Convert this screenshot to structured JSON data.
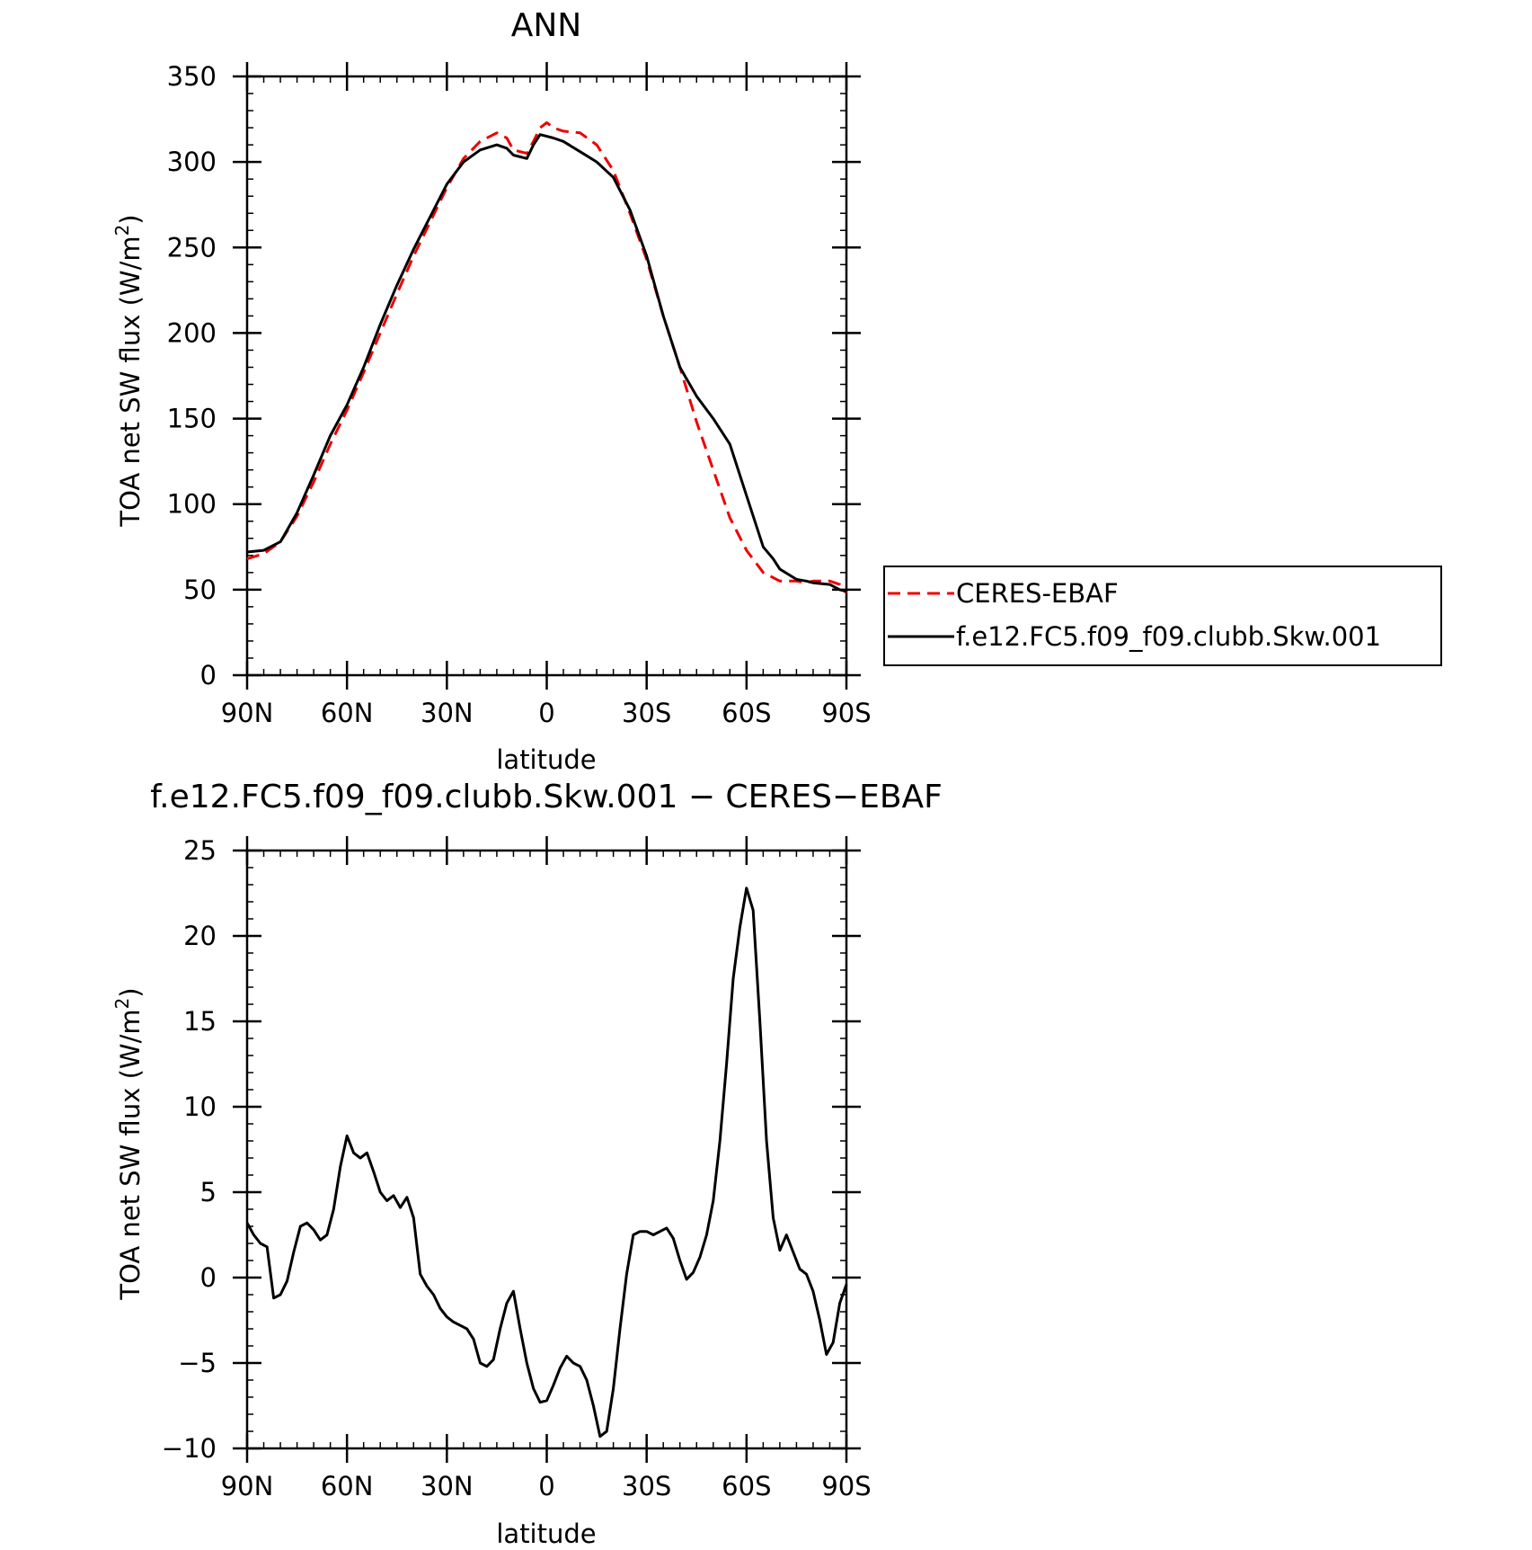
{
  "colors": {
    "obs": "#ee0000",
    "model": "#000000",
    "diff": "#000000"
  },
  "chart_data": [
    {
      "type": "line",
      "title": "ANN",
      "xlabel": "latitude",
      "ylabel": "TOA net SW flux (W/m²)",
      "x_direction": "90N to 90S",
      "x_tick_values": [
        90,
        60,
        30,
        0,
        -30,
        -60,
        -90
      ],
      "x_tick_labels": [
        "90N",
        "60N",
        "30N",
        "0",
        "30S",
        "60S",
        "90S"
      ],
      "y_tick_values": [
        0,
        50,
        100,
        150,
        200,
        250,
        300,
        350
      ],
      "y_tick_labels": [
        "0",
        "50",
        "100",
        "150",
        "200",
        "250",
        "300",
        "350"
      ],
      "xlim": [
        90,
        -90
      ],
      "ylim": [
        0,
        350
      ],
      "grid": false,
      "legend_position": "right",
      "series": [
        {
          "name": "CERES-EBAF",
          "style": "dashed",
          "color": "#ee0000",
          "x": [
            90,
            85,
            80,
            75,
            70,
            65,
            60,
            55,
            50,
            45,
            40,
            35,
            30,
            25,
            20,
            15,
            12,
            10,
            6,
            4,
            2,
            0,
            -2,
            -5,
            -10,
            -15,
            -20,
            -25,
            -30,
            -35,
            -40,
            -45,
            -50,
            -55,
            -60,
            -65,
            -68,
            -70,
            -75,
            -78,
            -80,
            -85,
            -88,
            -90
          ],
          "y": [
            68,
            71,
            78,
            93,
            113,
            135,
            155,
            177,
            200,
            223,
            245,
            265,
            285,
            302,
            312,
            317,
            314,
            307,
            305,
            312,
            320,
            323,
            320,
            318,
            317,
            310,
            295,
            270,
            243,
            210,
            180,
            148,
            120,
            92,
            73,
            60,
            57,
            55,
            55,
            54,
            55,
            55,
            53,
            48
          ]
        },
        {
          "name": "f.e12.FC5.f09_f09.clubb.Skw.001",
          "style": "solid",
          "color": "#000000",
          "x": [
            90,
            85,
            80,
            75,
            70,
            65,
            60,
            55,
            50,
            45,
            40,
            35,
            30,
            25,
            20,
            15,
            12,
            10,
            6,
            4,
            2,
            0,
            -2,
            -5,
            -10,
            -15,
            -20,
            -25,
            -30,
            -35,
            -40,
            -45,
            -50,
            -55,
            -60,
            -65,
            -68,
            -70,
            -75,
            -78,
            -80,
            -85,
            -88,
            -90
          ],
          "y": [
            72,
            73,
            78,
            95,
            117,
            140,
            158,
            180,
            205,
            228,
            249,
            268,
            287,
            300,
            307,
            310,
            308,
            304,
            302,
            310,
            316,
            315,
            314,
            312,
            306,
            300,
            291,
            272,
            245,
            210,
            180,
            163,
            150,
            135,
            105,
            75,
            68,
            62,
            56,
            55,
            54,
            53,
            50,
            49
          ]
        }
      ]
    },
    {
      "type": "line",
      "title": "f.e12.FC5.f09_f09.clubb.Skw.001 − CERES−EBAF",
      "xlabel": "latitude",
      "ylabel": "TOA net SW flux (W/m²)",
      "x_tick_values": [
        90,
        60,
        30,
        0,
        -30,
        -60,
        -90
      ],
      "x_tick_labels": [
        "90N",
        "60N",
        "30N",
        "0",
        "30S",
        "60S",
        "90S"
      ],
      "y_tick_values": [
        -10,
        -5,
        0,
        5,
        10,
        15,
        20,
        25
      ],
      "y_tick_labels": [
        "−10",
        "−5",
        "0",
        "5",
        "10",
        "15",
        "20",
        "25"
      ],
      "xlim": [
        90,
        -90
      ],
      "ylim": [
        -10,
        25
      ],
      "grid": false,
      "series": [
        {
          "style": "solid",
          "color": "#000000",
          "x": [
            90,
            88,
            86,
            84,
            82,
            80,
            78,
            76,
            74,
            72,
            70,
            68,
            66,
            64,
            62,
            60,
            58,
            56,
            54,
            52,
            50,
            48,
            46,
            44,
            42,
            40,
            38,
            36,
            34,
            32,
            30,
            28,
            26,
            24,
            22,
            20,
            18,
            16,
            14,
            12,
            10,
            8,
            6,
            4,
            2,
            0,
            -2,
            -4,
            -6,
            -8,
            -10,
            -12,
            -14,
            -16,
            -18,
            -20,
            -22,
            -24,
            -26,
            -28,
            -30,
            -32,
            -34,
            -36,
            -38,
            -40,
            -42,
            -44,
            -46,
            -48,
            -50,
            -52,
            -54,
            -56,
            -58,
            -60,
            -62,
            -64,
            -66,
            -68,
            -70,
            -72,
            -74,
            -76,
            -78,
            -80,
            -82,
            -84,
            -86,
            -88,
            -90
          ],
          "y": [
            3.2,
            2.5,
            2.0,
            1.8,
            -1.2,
            -1.0,
            -0.2,
            1.5,
            3.0,
            3.2,
            2.8,
            2.2,
            2.5,
            4.0,
            6.5,
            8.3,
            7.3,
            7.0,
            7.3,
            6.2,
            5.0,
            4.5,
            4.8,
            4.1,
            4.7,
            3.5,
            0.2,
            -0.5,
            -1.0,
            -1.8,
            -2.3,
            -2.6,
            -2.8,
            -3.0,
            -3.6,
            -5.0,
            -5.2,
            -4.8,
            -3.0,
            -1.5,
            -0.8,
            -3.0,
            -5.0,
            -6.5,
            -7.3,
            -7.2,
            -6.3,
            -5.3,
            -4.6,
            -5.0,
            -5.2,
            -6.0,
            -7.5,
            -9.3,
            -9.0,
            -6.5,
            -3.0,
            0.2,
            2.5,
            2.7,
            2.7,
            2.5,
            2.7,
            2.9,
            2.3,
            1.0,
            -0.1,
            0.3,
            1.2,
            2.5,
            4.5,
            8.0,
            12.5,
            17.5,
            20.5,
            22.8,
            21.5,
            15.0,
            8.0,
            3.5,
            1.6,
            2.5,
            1.5,
            0.5,
            0.2,
            -0.8,
            -2.5,
            -4.5,
            -3.8,
            -1.5,
            -0.4
          ]
        }
      ]
    }
  ]
}
